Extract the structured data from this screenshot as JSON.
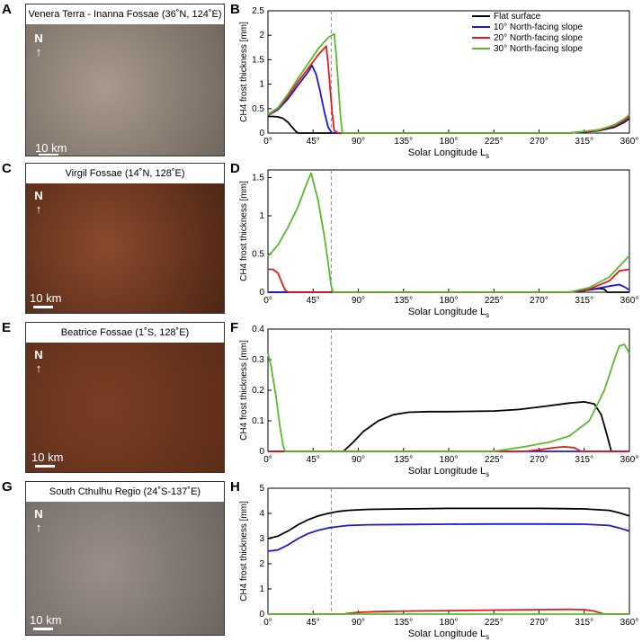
{
  "panels": [
    {
      "letter": "A",
      "title": "Venera Terra - Inanna Fossae (36˚N, 124˚E)",
      "scale": "10 km",
      "north": "N"
    },
    {
      "letter": "C",
      "title": "Virgil Fossae (14˚N, 128˚E)",
      "scale": "10 km",
      "north": "N"
    },
    {
      "letter": "E",
      "title": "Beatrice Fossae (1˚S, 128˚E)",
      "scale": "10 km",
      "north": "N"
    },
    {
      "letter": "G",
      "title": "South Cthulhu Regio (24˚S-137˚E)",
      "scale": "10 km",
      "north": "N"
    }
  ],
  "image_colors": {
    "A": [
      "#a89a8c",
      "#6e645c"
    ],
    "C": [
      "#8a4a2c",
      "#4a2414"
    ],
    "E": [
      "#7a3e24",
      "#5a2c18"
    ],
    "G": [
      "#9a8f88",
      "#6a625e"
    ]
  },
  "colors": {
    "flat": "#000000",
    "s10": "#1a1ad6",
    "s20": "#e01a1a",
    "s30": "#5cb82e",
    "dash": "#888888"
  },
  "legend": [
    "Flat surface",
    "10° North-facing slope",
    "20° North-facing slope",
    "30° North-facing slope"
  ],
  "chart_data": [
    {
      "letter": "B",
      "type": "line",
      "xlabel": "Solar Longitude L",
      "xlabel_sub": "s",
      "ylabel": "CH4 frost thickness [mm]",
      "xlim": [
        0,
        360
      ],
      "ylim": [
        0,
        2.5
      ],
      "yticks": [
        "0",
        "0.5",
        "1",
        "1.5",
        "2",
        "2.5"
      ],
      "ytick_values": [
        0,
        0.5,
        1,
        1.5,
        2,
        2.5
      ],
      "xticks": [
        "0°",
        "45°",
        "90°",
        "135°",
        "180°",
        "225°",
        "270°",
        "315°",
        "360°"
      ],
      "dashed_x": 63,
      "legend": true,
      "series": [
        {
          "name": "Flat surface",
          "color": "#000000",
          "x": [
            0,
            5,
            10,
            15,
            20,
            25,
            28,
            30,
            40,
            300,
            330,
            345,
            355,
            360
          ],
          "y": [
            0.34,
            0.34,
            0.33,
            0.3,
            0.22,
            0.1,
            0.03,
            0,
            0,
            0,
            0.05,
            0.12,
            0.22,
            0.3
          ]
        },
        {
          "name": "10° North-facing slope",
          "color": "#1a1ad6",
          "x": [
            0,
            10,
            20,
            30,
            40,
            44,
            48,
            52,
            56,
            60,
            63,
            65,
            70,
            300,
            330,
            345,
            355,
            360
          ],
          "y": [
            0.36,
            0.48,
            0.7,
            0.98,
            1.25,
            1.38,
            1.2,
            0.85,
            0.45,
            0.12,
            0.02,
            0,
            0,
            0,
            0.06,
            0.14,
            0.24,
            0.32
          ]
        },
        {
          "name": "20° North-facing slope",
          "color": "#e01a1a",
          "x": [
            0,
            10,
            20,
            30,
            40,
            50,
            58,
            60,
            62,
            64,
            66,
            70,
            300,
            330,
            345,
            355,
            360
          ],
          "y": [
            0.37,
            0.5,
            0.75,
            1.05,
            1.32,
            1.6,
            1.78,
            1.4,
            0.9,
            0.4,
            0.05,
            0,
            0,
            0.06,
            0.15,
            0.26,
            0.34
          ]
        },
        {
          "name": "30° North-facing slope",
          "color": "#5cb82e",
          "x": [
            0,
            10,
            20,
            30,
            40,
            50,
            60,
            66,
            68,
            70,
            72,
            74,
            300,
            330,
            345,
            355,
            360
          ],
          "y": [
            0.38,
            0.52,
            0.8,
            1.12,
            1.42,
            1.72,
            1.95,
            2.03,
            1.6,
            1.0,
            0.4,
            0,
            0,
            0.07,
            0.17,
            0.29,
            0.38
          ]
        }
      ]
    },
    {
      "letter": "D",
      "type": "line",
      "xlabel": "Solar Longitude L",
      "xlabel_sub": "s",
      "ylabel": "CH4 frost thickness [mm]",
      "xlim": [
        0,
        360
      ],
      "ylim": [
        0,
        1.6
      ],
      "yticks": [
        "0",
        "0.5",
        "1",
        "1.5"
      ],
      "ytick_values": [
        0,
        0.5,
        1,
        1.5
      ],
      "xticks": [
        "0°",
        "45°",
        "90°",
        "135°",
        "180°",
        "225°",
        "270°",
        "315°",
        "360°"
      ],
      "dashed_x": 63,
      "legend": false,
      "series": [
        {
          "name": "Flat surface",
          "color": "#000000",
          "x": [
            0,
            300,
            320,
            330,
            335,
            338,
            360
          ],
          "y": [
            0,
            0,
            0.03,
            0.05,
            0.04,
            0,
            0
          ]
        },
        {
          "name": "10° North-facing slope",
          "color": "#1a1ad6",
          "x": [
            0,
            300,
            320,
            340,
            350,
            355,
            360
          ],
          "y": [
            0,
            0,
            0.03,
            0.08,
            0.1,
            0.07,
            0.03
          ]
        },
        {
          "name": "20° North-facing slope",
          "color": "#e01a1a",
          "x": [
            0,
            5,
            10,
            14,
            17,
            20,
            300,
            320,
            340,
            350,
            360
          ],
          "y": [
            0.3,
            0.3,
            0.25,
            0.12,
            0.03,
            0,
            0,
            0.04,
            0.15,
            0.28,
            0.3
          ]
        },
        {
          "name": "30° North-facing slope",
          "color": "#5cb82e",
          "x": [
            0,
            10,
            20,
            30,
            38,
            43,
            50,
            56,
            60,
            63,
            65,
            300,
            320,
            340,
            350,
            360
          ],
          "y": [
            0.47,
            0.62,
            0.85,
            1.12,
            1.4,
            1.56,
            1.2,
            0.75,
            0.38,
            0.08,
            0,
            0,
            0.06,
            0.2,
            0.34,
            0.48
          ]
        }
      ]
    },
    {
      "letter": "F",
      "type": "line",
      "xlabel": "Solar Longitude L",
      "xlabel_sub": "s",
      "ylabel": "CH4 frost thickness [mm]",
      "xlim": [
        0,
        360
      ],
      "ylim": [
        0,
        0.4
      ],
      "yticks": [
        "0",
        "0.1",
        "0.2",
        "0.3",
        "0.4"
      ],
      "ytick_values": [
        0,
        0.1,
        0.2,
        0.3,
        0.4
      ],
      "xticks": [
        "0°",
        "45°",
        "90°",
        "135°",
        "180°",
        "225°",
        "270°",
        "315°",
        "360°"
      ],
      "dashed_x": 63,
      "legend": false,
      "series": [
        {
          "name": "Flat surface",
          "color": "#000000",
          "x": [
            0,
            75,
            85,
            95,
            110,
            125,
            140,
            160,
            180,
            200,
            225,
            250,
            275,
            300,
            315,
            325,
            332,
            338,
            342,
            360
          ],
          "y": [
            0,
            0,
            0.03,
            0.065,
            0.1,
            0.12,
            0.128,
            0.13,
            0.13,
            0.131,
            0.132,
            0.137,
            0.147,
            0.158,
            0.162,
            0.155,
            0.12,
            0.05,
            0,
            0
          ]
        },
        {
          "name": "10° North-facing slope",
          "color": "#1a1ad6",
          "x": [
            0,
            360
          ],
          "y": [
            0,
            0
          ]
        },
        {
          "name": "20° North-facing slope",
          "color": "#e01a1a",
          "x": [
            0,
            255,
            270,
            285,
            295,
            305,
            312,
            360
          ],
          "y": [
            0,
            0,
            0.005,
            0.012,
            0.015,
            0.012,
            0,
            0
          ]
        },
        {
          "name": "30° North-facing slope",
          "color": "#5cb82e",
          "x": [
            0,
            3,
            8,
            12,
            15,
            17,
            20,
            225,
            255,
            280,
            300,
            320,
            335,
            345,
            350,
            355,
            360
          ],
          "y": [
            0.32,
            0.28,
            0.18,
            0.08,
            0.02,
            0,
            0,
            0,
            0.015,
            0.03,
            0.05,
            0.1,
            0.2,
            0.3,
            0.345,
            0.35,
            0.32
          ]
        }
      ]
    },
    {
      "letter": "H",
      "type": "line",
      "xlabel": "Solar Longitude L",
      "xlabel_sub": "s",
      "ylabel": "CH4 frost thickness [mm]",
      "xlim": [
        0,
        360
      ],
      "ylim": [
        0,
        5
      ],
      "yticks": [
        "0",
        "1",
        "2",
        "3",
        "4",
        "5"
      ],
      "ytick_values": [
        0,
        1,
        2,
        3,
        4,
        5
      ],
      "xticks": [
        "0°",
        "45°",
        "90°",
        "135°",
        "180°",
        "225°",
        "270°",
        "315°",
        "360°"
      ],
      "dashed_x": 63,
      "legend": false,
      "series": [
        {
          "name": "Flat surface",
          "color": "#000000",
          "x": [
            0,
            10,
            20,
            30,
            40,
            50,
            60,
            70,
            80,
            100,
            135,
            180,
            225,
            270,
            315,
            340,
            350,
            360
          ],
          "y": [
            3.0,
            3.1,
            3.3,
            3.55,
            3.75,
            3.9,
            4.0,
            4.08,
            4.12,
            4.16,
            4.18,
            4.2,
            4.2,
            4.2,
            4.18,
            4.12,
            4.02,
            3.9
          ]
        },
        {
          "name": "10° North-facing slope",
          "color": "#1a1ad6",
          "x": [
            0,
            10,
            20,
            30,
            40,
            50,
            60,
            70,
            80,
            100,
            135,
            180,
            225,
            270,
            315,
            340,
            350,
            360
          ],
          "y": [
            2.5,
            2.55,
            2.75,
            3.0,
            3.2,
            3.33,
            3.42,
            3.48,
            3.52,
            3.55,
            3.56,
            3.57,
            3.58,
            3.58,
            3.57,
            3.52,
            3.42,
            3.3
          ]
        },
        {
          "name": "20° North-facing slope",
          "color": "#e01a1a",
          "x": [
            0,
            75,
            80,
            90,
            110,
            135,
            180,
            225,
            270,
            300,
            315,
            325,
            330,
            335,
            360
          ],
          "y": [
            0,
            0,
            0.03,
            0.07,
            0.1,
            0.12,
            0.14,
            0.16,
            0.18,
            0.19,
            0.18,
            0.12,
            0.06,
            0,
            0
          ]
        },
        {
          "name": "30° North-facing slope",
          "color": "#5cb82e",
          "x": [
            0,
            360
          ],
          "y": [
            0,
            0
          ]
        }
      ]
    }
  ]
}
